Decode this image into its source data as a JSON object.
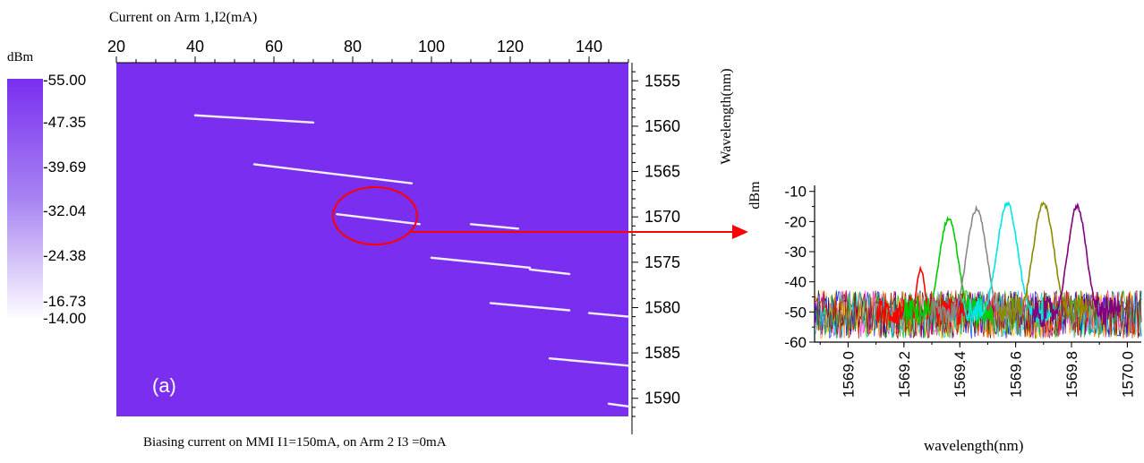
{
  "chart_data": [
    {
      "type": "heatmap",
      "title": "",
      "top_axis_label": "Current on Arm 1,I2(mA)",
      "right_axis_label": "Wavelength(nm)",
      "x_ticks": [
        20,
        40,
        60,
        80,
        100,
        120,
        140
      ],
      "xlim": [
        20,
        150
      ],
      "y_ticks": [
        1555,
        1560,
        1565,
        1570,
        1575,
        1580,
        1585,
        1590
      ],
      "ylim": [
        1553,
        1592
      ],
      "colorbar": {
        "unit": "dBm",
        "labels": [
          "-55.00",
          "-47.35",
          "-39.69",
          "-32.04",
          "-24.38",
          "-16.73",
          "-14.00"
        ],
        "range": [
          -55,
          -14
        ],
        "color_low": "#7a2ff0",
        "color_high": "#ffffff"
      },
      "background_color": "#7a2ff0",
      "panel_label": "(a)",
      "caption": "Biasing current on MMI I1=150mA, on Arm 2  I3 =0mA",
      "lasing_lines": [
        {
          "x": [
            40,
            70
          ],
          "y": [
            1558.8,
            1559.6
          ]
        },
        {
          "x": [
            55,
            95
          ],
          "y": [
            1564.2,
            1566.3
          ]
        },
        {
          "x": [
            76,
            97
          ],
          "y": [
            1569.7,
            1570.8
          ]
        },
        {
          "x": [
            110,
            122
          ],
          "y": [
            1570.8,
            1571.3
          ]
        },
        {
          "x": [
            100,
            125
          ],
          "y": [
            1574.5,
            1575.6
          ]
        },
        {
          "x": [
            125,
            135
          ],
          "y": [
            1575.8,
            1576.3
          ]
        },
        {
          "x": [
            115,
            135
          ],
          "y": [
            1579.5,
            1580.3
          ]
        },
        {
          "x": [
            140,
            150
          ],
          "y": [
            1580.6,
            1581.0
          ]
        },
        {
          "x": [
            130,
            150
          ],
          "y": [
            1585.6,
            1586.4
          ]
        },
        {
          "x": [
            145,
            150
          ],
          "y": [
            1590.6,
            1590.9
          ]
        }
      ]
    },
    {
      "type": "line",
      "title": "",
      "xlabel": "wavelength(nm)",
      "ylabel": "dBm",
      "x_ticks": [
        "1569.0",
        "1569.2",
        "1569.4",
        "1569.6",
        "1569.8",
        "1570.0"
      ],
      "xlim": [
        1568.88,
        1570.05
      ],
      "y_ticks": [
        -10,
        -20,
        -30,
        -40,
        -50,
        -60
      ],
      "ylim": [
        -60,
        -8
      ],
      "noise_floor": -50,
      "series": [
        {
          "color": "#ff0000",
          "peak": 1569.26,
          "level": -36,
          "width": 0.025
        },
        {
          "color": "#00cc00",
          "peak": 1569.36,
          "level": -19,
          "width": 0.038
        },
        {
          "color": "#888888",
          "peak": 1569.46,
          "level": -16,
          "width": 0.038
        },
        {
          "color": "#00e5e5",
          "peak": 1569.57,
          "level": -14,
          "width": 0.038
        },
        {
          "color": "#8a8a00",
          "peak": 1569.7,
          "level": -14,
          "width": 0.038
        },
        {
          "color": "#800080",
          "peak": 1569.82,
          "level": -15,
          "width": 0.035
        }
      ]
    }
  ],
  "arrow_color": "#ff0000",
  "highlight_color": "#ff0000"
}
